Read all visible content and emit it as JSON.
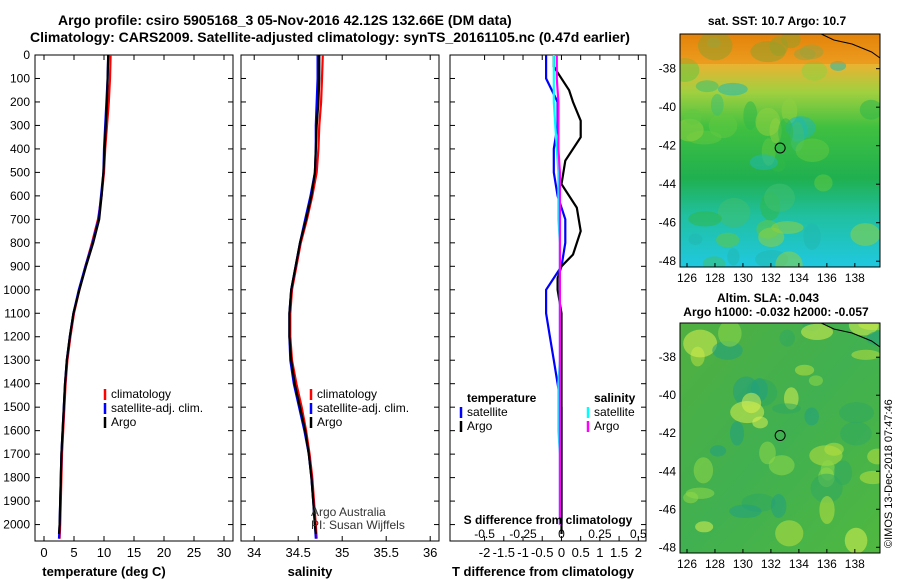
{
  "title": {
    "line1": "Argo profile: csiro 5905168_3 05-Nov-2016 42.12S 132.66E (DM data)",
    "line2": "Climatology: CARS2009. Satellite-adjusted climatology: synTS_20161105.nc (0.47d earlier)"
  },
  "colors": {
    "climatology": "#ff0000",
    "satellite": "#0000ff",
    "argo": "#000000",
    "salinity_satellite": "#00ffff",
    "salinity_argo": "#ff00ff"
  },
  "chart_data": [
    {
      "type": "line",
      "name": "temperature",
      "xlabel": "temperature (deg C)",
      "ylabel": "",
      "xlim": [
        -1.5,
        31.5
      ],
      "ylim": [
        2070,
        0
      ],
      "xticks": [
        "0",
        "5",
        "10",
        "15",
        "20",
        "25",
        "30"
      ],
      "yticks": [
        "0",
        "100",
        "200",
        "300",
        "400",
        "500",
        "600",
        "700",
        "800",
        "900",
        "1000",
        "1100",
        "1200",
        "1300",
        "1400",
        "1500",
        "1600",
        "1700",
        "1800",
        "1900",
        "2000"
      ],
      "legend": [
        "climatology",
        "satellite-adj. clim.",
        "Argo"
      ],
      "series": [
        {
          "name": "climatology",
          "color": "#ff0000",
          "points": [
            [
              11.1,
              0
            ],
            [
              11.0,
              100
            ],
            [
              10.8,
              200
            ],
            [
              10.5,
              300
            ],
            [
              10.2,
              400
            ],
            [
              10.0,
              500
            ],
            [
              9.6,
              600
            ],
            [
              9.0,
              700
            ],
            [
              8.0,
              800
            ],
            [
              6.9,
              900
            ],
            [
              5.9,
              1000
            ],
            [
              5.0,
              1100
            ],
            [
              4.4,
              1200
            ],
            [
              3.9,
              1300
            ],
            [
              3.6,
              1400
            ],
            [
              3.4,
              1500
            ],
            [
              3.2,
              1600
            ],
            [
              3.0,
              1700
            ],
            [
              2.9,
              1800
            ],
            [
              2.8,
              1900
            ],
            [
              2.7,
              2000
            ],
            [
              2.6,
              2060
            ]
          ]
        },
        {
          "name": "satellite-adj. clim.",
          "color": "#0000ff",
          "points": [
            [
              10.7,
              0
            ],
            [
              10.6,
              100
            ],
            [
              10.4,
              200
            ],
            [
              10.2,
              300
            ],
            [
              10.0,
              400
            ],
            [
              9.9,
              500
            ],
            [
              9.5,
              600
            ],
            [
              9.1,
              700
            ],
            [
              8.1,
              800
            ],
            [
              6.9,
              900
            ],
            [
              5.8,
              1000
            ],
            [
              4.9,
              1100
            ],
            [
              4.3,
              1200
            ],
            [
              3.8,
              1300
            ],
            [
              3.5,
              1400
            ],
            [
              3.3,
              1500
            ],
            [
              3.1,
              1600
            ],
            [
              2.9,
              1700
            ],
            [
              2.8,
              1800
            ],
            [
              2.7,
              1900
            ],
            [
              2.6,
              2000
            ],
            [
              2.5,
              2060
            ]
          ]
        },
        {
          "name": "Argo",
          "color": "#000000",
          "points": [
            [
              10.7,
              0
            ],
            [
              10.6,
              100
            ],
            [
              10.5,
              200
            ],
            [
              10.3,
              300
            ],
            [
              10.1,
              400
            ],
            [
              9.9,
              500
            ],
            [
              9.6,
              600
            ],
            [
              9.2,
              700
            ],
            [
              8.2,
              800
            ],
            [
              7.0,
              900
            ],
            [
              5.9,
              1000
            ],
            [
              4.9,
              1100
            ],
            [
              4.3,
              1200
            ],
            [
              3.8,
              1300
            ],
            [
              3.5,
              1400
            ],
            [
              3.3,
              1500
            ],
            [
              3.1,
              1600
            ],
            [
              2.9,
              1700
            ],
            [
              2.8,
              1800
            ],
            [
              2.7,
              1900
            ],
            [
              2.6,
              2000
            ],
            [
              2.5,
              2040
            ]
          ]
        }
      ]
    },
    {
      "type": "line",
      "name": "salinity",
      "xlabel": "salinity",
      "ylabel": "",
      "xlim": [
        33.85,
        36.1
      ],
      "ylim": [
        2070,
        0
      ],
      "xticks": [
        "34",
        "34.5",
        "35",
        "35.5",
        "36"
      ],
      "legend": [
        "climatology",
        "satellite-adj. clim.",
        "Argo"
      ],
      "annotation": [
        "Argo Australia",
        "PI: Susan Wijffels"
      ],
      "series": [
        {
          "name": "climatology",
          "color": "#ff0000",
          "points": [
            [
              34.78,
              0
            ],
            [
              34.77,
              100
            ],
            [
              34.76,
              200
            ],
            [
              34.74,
              300
            ],
            [
              34.73,
              400
            ],
            [
              34.71,
              500
            ],
            [
              34.66,
              600
            ],
            [
              34.6,
              700
            ],
            [
              34.53,
              800
            ],
            [
              34.48,
              900
            ],
            [
              34.43,
              1000
            ],
            [
              34.41,
              1100
            ],
            [
              34.41,
              1200
            ],
            [
              34.43,
              1300
            ],
            [
              34.48,
              1400
            ],
            [
              34.54,
              1500
            ],
            [
              34.59,
              1600
            ],
            [
              34.63,
              1700
            ],
            [
              34.66,
              1800
            ],
            [
              34.68,
              1900
            ],
            [
              34.7,
              2000
            ],
            [
              34.71,
              2060
            ]
          ]
        },
        {
          "name": "satellite-adj. clim.",
          "color": "#0000ff",
          "points": [
            [
              34.72,
              0
            ],
            [
              34.72,
              100
            ],
            [
              34.71,
              200
            ],
            [
              34.7,
              300
            ],
            [
              34.7,
              400
            ],
            [
              34.69,
              500
            ],
            [
              34.64,
              600
            ],
            [
              34.58,
              700
            ],
            [
              34.52,
              800
            ],
            [
              34.47,
              900
            ],
            [
              34.42,
              1000
            ],
            [
              34.4,
              1100
            ],
            [
              34.4,
              1200
            ],
            [
              34.41,
              1300
            ],
            [
              34.45,
              1400
            ],
            [
              34.51,
              1500
            ],
            [
              34.57,
              1600
            ],
            [
              34.62,
              1700
            ],
            [
              34.65,
              1800
            ],
            [
              34.67,
              1900
            ],
            [
              34.69,
              2000
            ],
            [
              34.7,
              2060
            ]
          ]
        },
        {
          "name": "Argo",
          "color": "#000000",
          "points": [
            [
              34.74,
              0
            ],
            [
              34.74,
              100
            ],
            [
              34.73,
              200
            ],
            [
              34.71,
              300
            ],
            [
              34.7,
              400
            ],
            [
              34.69,
              500
            ],
            [
              34.65,
              600
            ],
            [
              34.59,
              700
            ],
            [
              34.52,
              800
            ],
            [
              34.47,
              900
            ],
            [
              34.42,
              1000
            ],
            [
              34.4,
              1100
            ],
            [
              34.4,
              1200
            ],
            [
              34.42,
              1300
            ],
            [
              34.46,
              1400
            ],
            [
              34.52,
              1500
            ],
            [
              34.58,
              1600
            ],
            [
              34.62,
              1700
            ],
            [
              34.65,
              1800
            ],
            [
              34.67,
              1900
            ],
            [
              34.69,
              2000
            ],
            [
              34.7,
              2040
            ]
          ]
        }
      ]
    },
    {
      "type": "line",
      "name": "difference",
      "xlabel": "T difference from climatology",
      "x2label": "S difference from climatology",
      "xlim": [
        -2.9,
        2.2
      ],
      "ylim": [
        2070,
        0
      ],
      "xticks": [
        "-2",
        "-1.5",
        "-1",
        "-0.5",
        "0",
        "0.5",
        "1",
        "1.5",
        "2"
      ],
      "x2ticks": [
        "-0.5",
        "-0.25",
        "0",
        "0.25",
        "0.5"
      ],
      "legend_t": {
        "title": "temperature",
        "entries": [
          "satellite",
          "Argo"
        ]
      },
      "legend_s": {
        "title": "salinity",
        "entries": [
          "satellite",
          "Argo"
        ]
      },
      "series": [
        {
          "name": "temperature satellite",
          "color": "#0000ff",
          "points": [
            [
              -0.4,
              0
            ],
            [
              -0.4,
              100
            ],
            [
              -0.1,
              200
            ],
            [
              -0.1,
              300
            ],
            [
              -0.2,
              400
            ],
            [
              -0.2,
              500
            ],
            [
              -0.1,
              600
            ],
            [
              0.1,
              700
            ],
            [
              0.1,
              800
            ],
            [
              0.0,
              900
            ],
            [
              -0.4,
              1000
            ],
            [
              -0.4,
              1100
            ],
            [
              -0.3,
              1200
            ],
            [
              -0.2,
              1300
            ],
            [
              -0.1,
              1400
            ],
            [
              0.0,
              1500
            ],
            [
              0.0,
              1600
            ],
            [
              0.0,
              1700
            ],
            [
              0.0,
              1800
            ],
            [
              0.0,
              1900
            ],
            [
              0.0,
              2000
            ]
          ]
        },
        {
          "name": "temperature Argo",
          "color": "#000000",
          "points": [
            [
              -0.2,
              0
            ],
            [
              -0.2,
              50
            ],
            [
              0.2,
              150
            ],
            [
              0.3,
              200
            ],
            [
              0.5,
              280
            ],
            [
              0.5,
              350
            ],
            [
              0.1,
              450
            ],
            [
              0.0,
              550
            ],
            [
              0.4,
              650
            ],
            [
              0.5,
              750
            ],
            [
              0.3,
              850
            ],
            [
              0.0,
              900
            ],
            [
              -0.1,
              950
            ],
            [
              -0.1,
              1000
            ],
            [
              0.0,
              1100
            ],
            [
              0.0,
              1200
            ],
            [
              0.0,
              1300
            ],
            [
              0.0,
              1400
            ],
            [
              0.0,
              1500
            ],
            [
              0.0,
              1600
            ],
            [
              0.0,
              1700
            ],
            [
              0.0,
              1800
            ],
            [
              0.0,
              1900
            ],
            [
              0.0,
              2000
            ],
            [
              0.0,
              2040
            ]
          ]
        },
        {
          "name": "salinity satellite",
          "color": "#00ffff",
          "points": [
            [
              -0.05,
              0
            ],
            [
              -0.05,
              100
            ],
            [
              -0.05,
              200
            ],
            [
              -0.04,
              300
            ],
            [
              -0.03,
              400
            ],
            [
              -0.02,
              500
            ],
            [
              -0.02,
              600
            ],
            [
              -0.02,
              700
            ],
            [
              -0.01,
              800
            ],
            [
              -0.01,
              900
            ],
            [
              -0.01,
              1000
            ],
            [
              -0.01,
              1100
            ],
            [
              -0.01,
              1200
            ],
            [
              -0.01,
              1300
            ],
            [
              -0.02,
              1400
            ],
            [
              -0.02,
              1500
            ],
            [
              -0.02,
              1600
            ],
            [
              -0.01,
              1700
            ],
            [
              -0.01,
              1800
            ],
            [
              -0.01,
              1900
            ],
            [
              -0.01,
              2000
            ]
          ]
        },
        {
          "name": "salinity Argo",
          "color": "#ff00ff",
          "points": [
            [
              -0.03,
              0
            ],
            [
              -0.03,
              100
            ],
            [
              -0.02,
              200
            ],
            [
              -0.02,
              300
            ],
            [
              -0.02,
              400
            ],
            [
              -0.01,
              500
            ],
            [
              -0.01,
              600
            ],
            [
              -0.01,
              700
            ],
            [
              -0.01,
              800
            ],
            [
              -0.01,
              900
            ],
            [
              -0.01,
              1000
            ],
            [
              -0.01,
              1100
            ],
            [
              -0.01,
              1200
            ],
            [
              -0.01,
              1300
            ],
            [
              -0.01,
              1400
            ],
            [
              -0.01,
              1500
            ],
            [
              -0.01,
              1600
            ],
            [
              -0.01,
              1700
            ],
            [
              -0.01,
              1800
            ],
            [
              -0.01,
              1900
            ],
            [
              -0.01,
              2000
            ]
          ]
        }
      ]
    },
    {
      "type": "heatmap",
      "name": "sst-map",
      "title": "sat. SST: 10.7 Argo: 10.7",
      "xlim": [
        125.5,
        139.8
      ],
      "ylim": [
        -48.3,
        -36.2
      ],
      "xticks": [
        "126",
        "128",
        "130",
        "132",
        "134",
        "136",
        "138"
      ],
      "yticks": [
        "-38",
        "-40",
        "-42",
        "-44",
        "-46",
        "-48"
      ],
      "marker": [
        132.66,
        -42.12
      ]
    },
    {
      "type": "heatmap",
      "name": "sla-map",
      "title": "Altim. SLA: -0.043",
      "subtitle": "Argo h1000: -0.032 h2000: -0.057",
      "xlim": [
        125.5,
        139.8
      ],
      "ylim": [
        -48.3,
        -36.2
      ],
      "xticks": [
        "126",
        "128",
        "130",
        "132",
        "134",
        "136",
        "138"
      ],
      "yticks": [
        "-38",
        "-40",
        "-42",
        "-44",
        "-46",
        "-48"
      ],
      "marker": [
        132.66,
        -42.12
      ]
    }
  ],
  "credit": "©IMOS 13-Dec-2018 07:47:46"
}
